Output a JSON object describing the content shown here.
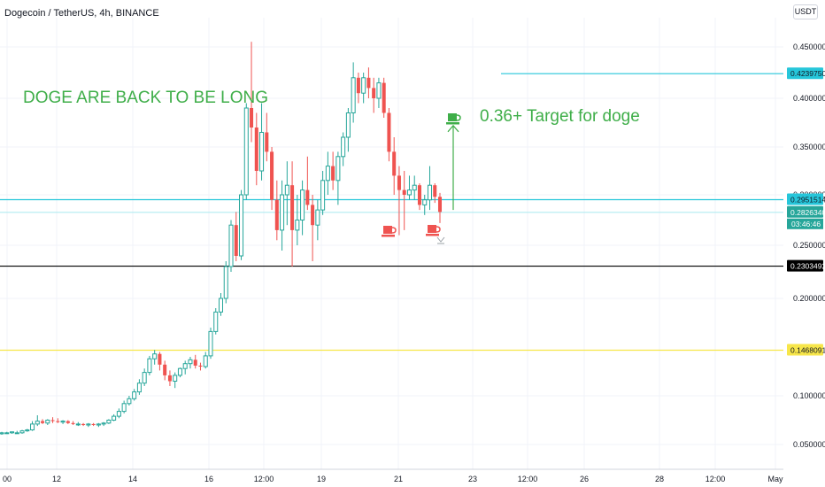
{
  "header": {
    "symbol_line": "Dogecoin / TetherUS, 4h, BINANCE",
    "currency_button": "USDT"
  },
  "annotations": {
    "back_long": "DOGE ARE BACK TO BE LONG",
    "target": "0.36+ Target for doge"
  },
  "colors": {
    "up": "#26a69a",
    "down": "#ef5350",
    "annotation": "#3fae49",
    "cyan_line": "#26c6da",
    "yellow_line": "#f7e64a",
    "black_line": "#000000"
  },
  "chart_data": {
    "type": "candlestick",
    "symbol": "Dogecoin / TetherUS",
    "interval": "4h",
    "exchange": "BINANCE",
    "ylim": [
      0.03,
      0.48
    ],
    "y_ticks": [
      "0.4500000",
      "0.4000000",
      "0.3500000",
      "0.3000000",
      "0.2500000",
      "0.2000000",
      "0.1000000",
      "0.0500000"
    ],
    "x_ticks": [
      "00",
      "12",
      "14",
      "16",
      "12:00",
      "19",
      "21",
      "23",
      "12:00",
      "26",
      "28",
      "12:00",
      "May"
    ],
    "price_labels": [
      {
        "value": 0.423975,
        "text": "0.4239750",
        "style": "cyan"
      },
      {
        "value": 0.2951514,
        "text": "0.2951514",
        "style": "cyan"
      },
      {
        "value": 0.282634,
        "text": "0.2826340",
        "style": "teal"
      },
      {
        "value": 0.2303492,
        "text": "0.2303492",
        "style": "black"
      },
      {
        "value": 0.1468091,
        "text": "0.1468091",
        "style": "yellow"
      }
    ],
    "countdown": "03:46:46",
    "horizontal_lines": [
      {
        "value": 0.2951514,
        "color": "cyan",
        "range": "full"
      },
      {
        "value": 0.282634,
        "color": "light-cyan",
        "range": "full"
      },
      {
        "value": 0.2303492,
        "color": "black",
        "range": "full"
      },
      {
        "value": 0.1468091,
        "color": "yellow",
        "range": "full"
      },
      {
        "value": 0.423975,
        "color": "cyan",
        "range": "from-24-apr"
      }
    ],
    "target_arrow": {
      "from": 0.285,
      "to": 0.372
    },
    "candles": [
      [
        0.061,
        0.063,
        0.06,
        0.062
      ],
      [
        0.062,
        0.063,
        0.061,
        0.062
      ],
      [
        0.062,
        0.063,
        0.061,
        0.063
      ],
      [
        0.062,
        0.064,
        0.061,
        0.062
      ],
      [
        0.062,
        0.065,
        0.061,
        0.064
      ],
      [
        0.064,
        0.066,
        0.063,
        0.065
      ],
      [
        0.065,
        0.074,
        0.064,
        0.071
      ],
      [
        0.071,
        0.08,
        0.069,
        0.074
      ],
      [
        0.074,
        0.076,
        0.071,
        0.072
      ],
      [
        0.072,
        0.076,
        0.07,
        0.075
      ],
      [
        0.075,
        0.078,
        0.072,
        0.074
      ],
      [
        0.074,
        0.077,
        0.072,
        0.073
      ],
      [
        0.073,
        0.075,
        0.071,
        0.074
      ],
      [
        0.074,
        0.075,
        0.071,
        0.072
      ],
      [
        0.072,
        0.074,
        0.07,
        0.071
      ],
      [
        0.071,
        0.073,
        0.069,
        0.071
      ],
      [
        0.071,
        0.072,
        0.069,
        0.07
      ],
      [
        0.07,
        0.072,
        0.068,
        0.071
      ],
      [
        0.071,
        0.072,
        0.069,
        0.07
      ],
      [
        0.07,
        0.072,
        0.068,
        0.071
      ],
      [
        0.071,
        0.073,
        0.069,
        0.072
      ],
      [
        0.072,
        0.076,
        0.071,
        0.075
      ],
      [
        0.075,
        0.081,
        0.074,
        0.079
      ],
      [
        0.079,
        0.087,
        0.077,
        0.084
      ],
      [
        0.084,
        0.095,
        0.082,
        0.092
      ],
      [
        0.092,
        0.1,
        0.09,
        0.097
      ],
      [
        0.097,
        0.107,
        0.095,
        0.104
      ],
      [
        0.104,
        0.117,
        0.101,
        0.113
      ],
      [
        0.113,
        0.128,
        0.11,
        0.124
      ],
      [
        0.124,
        0.141,
        0.121,
        0.138
      ],
      [
        0.138,
        0.147,
        0.132,
        0.143
      ],
      [
        0.143,
        0.145,
        0.126,
        0.132
      ],
      [
        0.132,
        0.136,
        0.116,
        0.121
      ],
      [
        0.121,
        0.126,
        0.11,
        0.115
      ],
      [
        0.115,
        0.124,
        0.108,
        0.121
      ],
      [
        0.121,
        0.129,
        0.119,
        0.128
      ],
      [
        0.128,
        0.136,
        0.122,
        0.133
      ],
      [
        0.133,
        0.14,
        0.128,
        0.137
      ],
      [
        0.137,
        0.142,
        0.128,
        0.131
      ],
      [
        0.131,
        0.134,
        0.126,
        0.13
      ],
      [
        0.13,
        0.145,
        0.128,
        0.141
      ],
      [
        0.141,
        0.17,
        0.138,
        0.166
      ],
      [
        0.166,
        0.19,
        0.163,
        0.186
      ],
      [
        0.186,
        0.205,
        0.182,
        0.2
      ],
      [
        0.2,
        0.235,
        0.195,
        0.23
      ],
      [
        0.23,
        0.275,
        0.225,
        0.27
      ],
      [
        0.27,
        0.283,
        0.235,
        0.24
      ],
      [
        0.24,
        0.305,
        0.236,
        0.3
      ],
      [
        0.3,
        0.395,
        0.295,
        0.39
      ],
      [
        0.39,
        0.455,
        0.355,
        0.37
      ],
      [
        0.37,
        0.385,
        0.31,
        0.325
      ],
      [
        0.325,
        0.395,
        0.315,
        0.365
      ],
      [
        0.365,
        0.385,
        0.335,
        0.345
      ],
      [
        0.345,
        0.35,
        0.285,
        0.295
      ],
      [
        0.295,
        0.315,
        0.255,
        0.265
      ],
      [
        0.265,
        0.315,
        0.245,
        0.3
      ],
      [
        0.3,
        0.335,
        0.27,
        0.31
      ],
      [
        0.31,
        0.335,
        0.23,
        0.265
      ],
      [
        0.265,
        0.3,
        0.25,
        0.275
      ],
      [
        0.275,
        0.315,
        0.26,
        0.305
      ],
      [
        0.305,
        0.34,
        0.285,
        0.29
      ],
      [
        0.29,
        0.3,
        0.235,
        0.27
      ],
      [
        0.27,
        0.295,
        0.255,
        0.285
      ],
      [
        0.285,
        0.325,
        0.28,
        0.315
      ],
      [
        0.315,
        0.345,
        0.3,
        0.33
      ],
      [
        0.33,
        0.345,
        0.305,
        0.315
      ],
      [
        0.315,
        0.345,
        0.29,
        0.34
      ],
      [
        0.34,
        0.365,
        0.33,
        0.36
      ],
      [
        0.36,
        0.39,
        0.345,
        0.385
      ],
      [
        0.385,
        0.435,
        0.375,
        0.42
      ],
      [
        0.42,
        0.425,
        0.395,
        0.405
      ],
      [
        0.405,
        0.425,
        0.395,
        0.42
      ],
      [
        0.42,
        0.43,
        0.4,
        0.41
      ],
      [
        0.41,
        0.42,
        0.385,
        0.4
      ],
      [
        0.4,
        0.42,
        0.39,
        0.415
      ],
      [
        0.415,
        0.42,
        0.38,
        0.385
      ],
      [
        0.385,
        0.39,
        0.335,
        0.345
      ],
      [
        0.345,
        0.36,
        0.3,
        0.32
      ],
      [
        0.32,
        0.33,
        0.26,
        0.305
      ],
      [
        0.305,
        0.325,
        0.265,
        0.3
      ],
      [
        0.3,
        0.32,
        0.295,
        0.305
      ],
      [
        0.305,
        0.32,
        0.295,
        0.31
      ],
      [
        0.31,
        0.312,
        0.285,
        0.29
      ],
      [
        0.29,
        0.3,
        0.28,
        0.295
      ],
      [
        0.295,
        0.33,
        0.285,
        0.31
      ],
      [
        0.31,
        0.312,
        0.292,
        0.298
      ],
      [
        0.298,
        0.302,
        0.272,
        0.283
      ]
    ]
  }
}
